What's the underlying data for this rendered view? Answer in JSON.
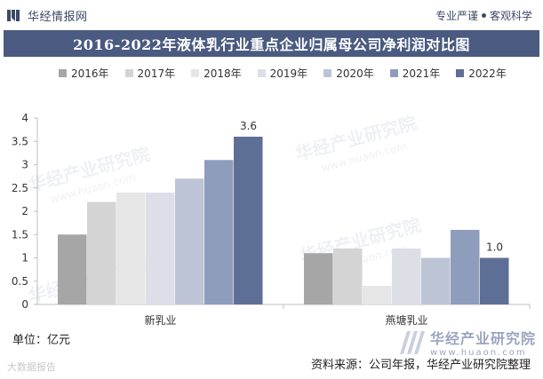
{
  "header": {
    "brand": "华经情报网",
    "slogan_left": "专业严谨",
    "slogan_right": "客观科学"
  },
  "title": "2016-2022年液体乳行业重点企业归属母公司净利润对比图",
  "watermark": {
    "cn": "华经产业研究院",
    "en": "www.huaon.com"
  },
  "unit": "单位：亿元",
  "source": "资料来源：公司年报，华经产业研究院整理",
  "footer_brand": "大数据报告",
  "colors": {
    "title_bg": "#4a5a80",
    "series": [
      "#a6a6a6",
      "#d4d4d4",
      "#e6e6e6",
      "#dcdfe6",
      "#bdc4d6",
      "#8f9dbd",
      "#5e6f96"
    ]
  },
  "chart_data": {
    "type": "bar",
    "title": "2016-2022年液体乳行业重点企业归属母公司净利润对比图",
    "categories": [
      "新乳业",
      "燕塘乳业"
    ],
    "series": [
      {
        "name": "2016年",
        "values": [
          1.5,
          1.1
        ]
      },
      {
        "name": "2017年",
        "values": [
          2.2,
          1.2
        ]
      },
      {
        "name": "2018年",
        "values": [
          2.4,
          0.4
        ]
      },
      {
        "name": "2019年",
        "values": [
          2.4,
          1.2
        ]
      },
      {
        "name": "2020年",
        "values": [
          2.7,
          1.0
        ]
      },
      {
        "name": "2021年",
        "values": [
          3.1,
          1.6
        ]
      },
      {
        "name": "2022年",
        "values": [
          3.6,
          1.0
        ]
      }
    ],
    "data_labels": [
      {
        "series": "2022年",
        "category": "新乳业",
        "text": "3.6"
      },
      {
        "series": "2022年",
        "category": "燕塘乳业",
        "text": "1.0"
      }
    ],
    "yticks": [
      "0",
      "0.5",
      "1",
      "1.5",
      "2",
      "2.5",
      "3",
      "3.5",
      "4"
    ],
    "ylim": [
      0,
      4
    ],
    "xlabel": "",
    "ylabel": "",
    "grid": false,
    "legend": "top"
  }
}
